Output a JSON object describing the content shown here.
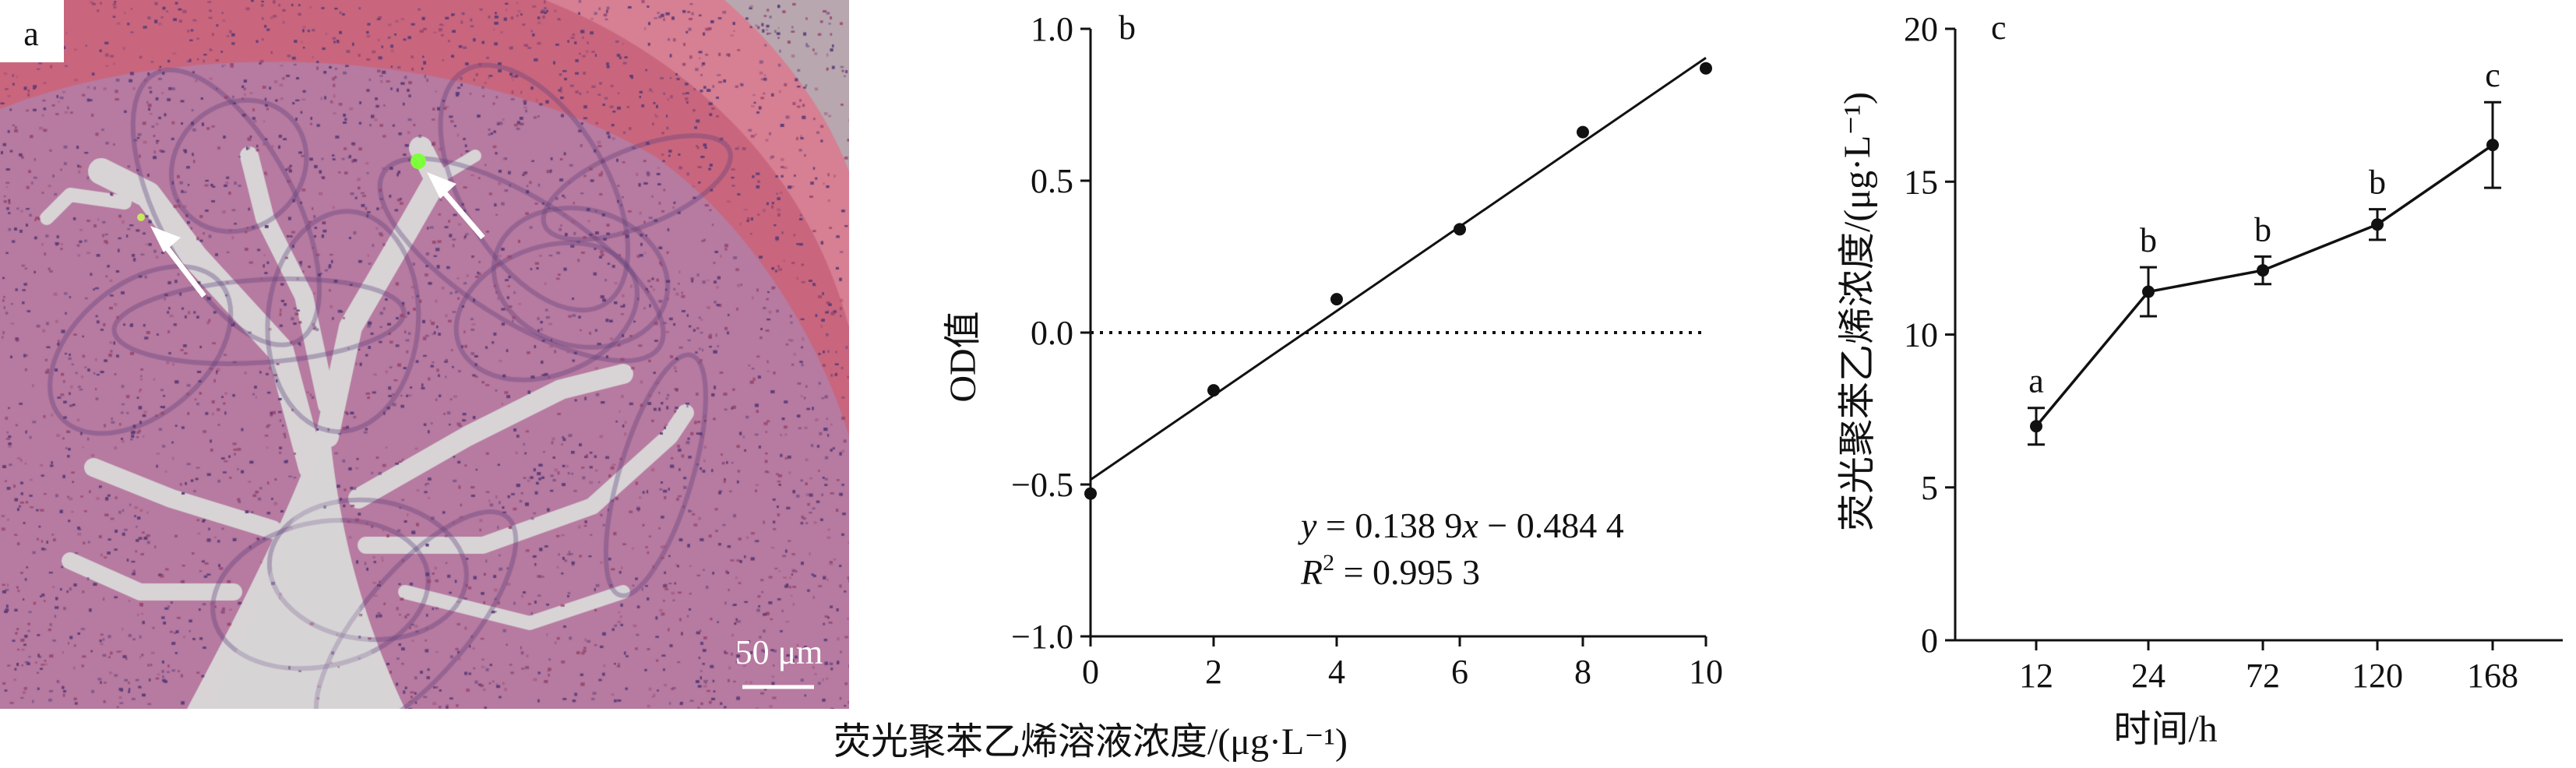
{
  "panels": {
    "a": {
      "letter": "a",
      "scale_bar_label": "50 μm",
      "colors": {
        "tissue": "#c9667e",
        "nuclei": "#5a3c78",
        "lumen": "#d8d4d6",
        "marker": "#7dff3a",
        "arrow": "#ffffff"
      },
      "icons": [
        "arrow-icon",
        "arrow-icon"
      ]
    },
    "b": {
      "letter": "b"
    },
    "c": {
      "letter": "c"
    }
  },
  "chart_data": [
    {
      "type": "scatter",
      "panel": "b",
      "xlabel": "荧光聚苯乙烯溶液浓度/(μg·L⁻¹)",
      "ylabel": "OD值",
      "xlim": [
        0,
        10
      ],
      "ylim": [
        -1.0,
        1.0
      ],
      "xticks": [
        0,
        2,
        4,
        6,
        8,
        10
      ],
      "yticks": [
        -1.0,
        -0.5,
        0.0,
        0.5,
        1.0
      ],
      "xtick_labels": [
        "0",
        "2",
        "4",
        "6",
        "8",
        "10"
      ],
      "ytick_labels": [
        "−1.0",
        "−0.5",
        "0.0",
        "0.5",
        "1.0"
      ],
      "x": [
        0,
        2,
        4,
        6,
        8,
        10
      ],
      "y": [
        -0.53,
        -0.19,
        0.11,
        0.34,
        0.66,
        0.87
      ],
      "fit": {
        "slope": 0.1389,
        "intercept": -0.4844,
        "r2": 0.9953
      },
      "equation_parts": {
        "y": "y",
        "mid": " = 0.138 9",
        "x": "x",
        "tail": " − 0.484 4"
      },
      "r2_parts": {
        "R": "R",
        "sup": "2",
        "tail": " = 0.995 3"
      },
      "reference_line_y": 0,
      "grid": false
    },
    {
      "type": "line",
      "panel": "c",
      "xlabel": "时间/h",
      "ylabel": "荧光聚苯乙烯浓度/(μg·L⁻¹)",
      "categories": [
        "12",
        "24",
        "72",
        "120",
        "168"
      ],
      "values": [
        7.0,
        11.4,
        12.1,
        13.6,
        16.2
      ],
      "errors": [
        0.6,
        0.8,
        0.45,
        0.5,
        1.4
      ],
      "significance": [
        "a",
        "b",
        "b",
        "b",
        "c"
      ],
      "ylim": [
        0,
        20
      ],
      "yticks": [
        0,
        5,
        10,
        15,
        20
      ],
      "ytick_labels": [
        "0",
        "5",
        "10",
        "15",
        "20"
      ],
      "grid": false
    }
  ]
}
